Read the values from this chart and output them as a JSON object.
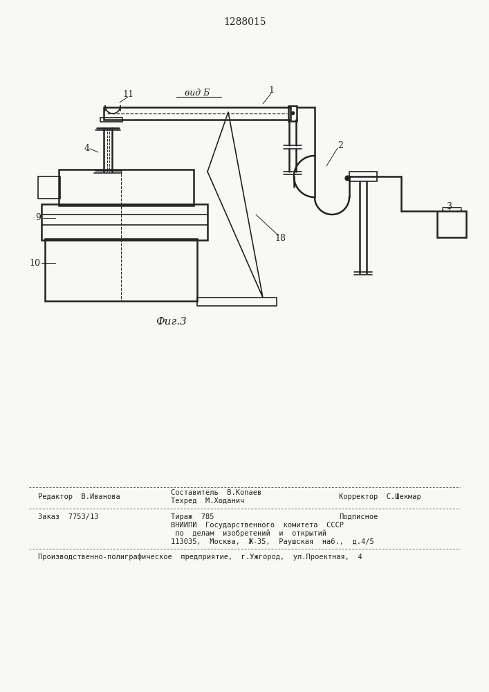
{
  "patent_number": "1288015",
  "fig_label": "Фиг.3",
  "view_label": "вид Б",
  "background_color": "#f8f8f5",
  "line_color": "#222222",
  "footer": {
    "line1_left": "Редактор  В.Иванова",
    "line1_center_top": "Составитель  В.Копаев",
    "line1_center_bot": "Техред  М.Ходанич",
    "line1_right": "Корректор  С.Шекмар",
    "line2_left": "Заказ  7753/13",
    "line2_center": "Тираж  785",
    "line2_right": "Подписное",
    "line3": "ВНИИПИ  Государственного  комитета  СССР",
    "line4": " по  делам  изобретений  и  открытий",
    "line5": "113035,  Москва,  Ж-35,  Раушская  наб.,  д.4/5",
    "line6": "Производственно-полиграфическое  предприятие,  г.Ужгород,  ул.Проектная,  4"
  }
}
